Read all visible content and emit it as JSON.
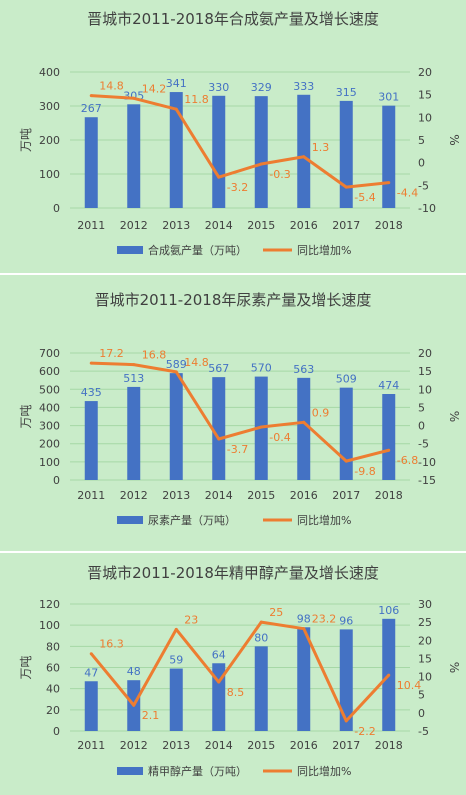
{
  "colors": {
    "bar": "#4472c4",
    "line": "#ed7d31",
    "axis_text": "#404040",
    "grid": "#a6d8a6",
    "background": "#c9ecc9"
  },
  "chart_data": [
    {
      "type": "bar",
      "title": "晋城市2011-2018年合成氨产量及增长速度",
      "categories": [
        "2011",
        "2012",
        "2013",
        "2014",
        "2015",
        "2016",
        "2017",
        "2018"
      ],
      "ylabel": "万吨",
      "y2label": "%",
      "ylim": [
        0,
        400
      ],
      "y2lim": [
        -10,
        20
      ],
      "yticks": [
        0,
        100,
        200,
        300,
        400
      ],
      "y2ticks": [
        -10,
        -5,
        0,
        5,
        10,
        15,
        20
      ],
      "grid": true,
      "legend_position": "bottom",
      "series": [
        {
          "name": "合成氨产量（万吨）",
          "kind": "bar",
          "axis": "left",
          "values": [
            267,
            305,
            341,
            330,
            329,
            333,
            315,
            301
          ],
          "labels": [
            "267",
            "305",
            "341",
            "330",
            "329",
            "333",
            "315",
            "301"
          ]
        },
        {
          "name": "同比增加%",
          "kind": "line",
          "axis": "right",
          "values": [
            14.8,
            14.2,
            11.8,
            -3.2,
            -0.3,
            1.3,
            -5.4,
            -4.4
          ],
          "labels": [
            "14.8",
            "14.2",
            "11.8",
            "-3.2",
            "-0.3",
            "1.3",
            "-5.4",
            "-4.4"
          ]
        }
      ]
    },
    {
      "type": "bar",
      "title": "晋城市2011-2018年尿素产量及增长速度",
      "categories": [
        "2011",
        "2012",
        "2013",
        "2014",
        "2015",
        "2016",
        "2017",
        "2018"
      ],
      "ylabel": "万吨",
      "y2label": "%",
      "ylim": [
        0,
        700
      ],
      "y2lim": [
        -15,
        20
      ],
      "yticks": [
        0,
        100,
        200,
        300,
        400,
        500,
        600,
        700
      ],
      "y2ticks": [
        -15,
        -10,
        -5,
        0,
        5,
        10,
        15,
        20
      ],
      "grid": true,
      "legend_position": "bottom",
      "series": [
        {
          "name": "尿素产量（万吨）",
          "kind": "bar",
          "axis": "left",
          "values": [
            435,
            513,
            589,
            567,
            570,
            563,
            509,
            474
          ],
          "labels": [
            "435",
            "513",
            "589",
            "567",
            "570",
            "563",
            "509",
            "474"
          ]
        },
        {
          "name": "同比增加%",
          "kind": "line",
          "axis": "right",
          "values": [
            17.2,
            16.8,
            14.8,
            -3.7,
            -0.4,
            0.9,
            -9.8,
            -6.8
          ],
          "labels": [
            "17.2",
            "16.8",
            "14.8",
            "-3.7",
            "-0.4",
            "0.9",
            "-9.8",
            "-6.8"
          ]
        }
      ]
    },
    {
      "type": "bar",
      "title": "晋城市2011-2018年精甲醇产量及增长速度",
      "categories": [
        "2011",
        "2012",
        "2013",
        "2014",
        "2015",
        "2016",
        "2017",
        "2018"
      ],
      "ylabel": "万吨",
      "y2label": "%",
      "ylim": [
        0,
        120
      ],
      "y2lim": [
        -5,
        30
      ],
      "yticks": [
        0,
        20,
        40,
        60,
        80,
        100,
        120
      ],
      "y2ticks": [
        -5,
        0,
        5,
        10,
        15,
        20,
        25,
        30
      ],
      "grid": true,
      "legend_position": "bottom",
      "series": [
        {
          "name": "精甲醇产量（万吨）",
          "kind": "bar",
          "axis": "left",
          "values": [
            47,
            48,
            59,
            64,
            80,
            98,
            96,
            106
          ],
          "labels": [
            "47",
            "48",
            "59",
            "64",
            "80",
            "98",
            "96",
            "106"
          ]
        },
        {
          "name": "同比增加%",
          "kind": "line",
          "axis": "right",
          "values": [
            16.3,
            2.1,
            23,
            8.5,
            25,
            23.2,
            -2.2,
            10.4
          ],
          "labels": [
            "16.3",
            "2.1",
            "23",
            "8.5",
            "25",
            "23.2",
            "-2.2",
            "10.4"
          ]
        }
      ]
    }
  ]
}
